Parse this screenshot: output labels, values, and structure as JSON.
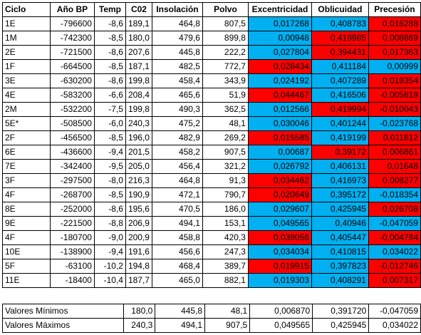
{
  "headers": [
    "Ciclo",
    "Año BP",
    "Temp",
    "C02",
    "Insolación",
    "Polvo",
    "Excentricidad",
    "Oblicuidad",
    "Precesión"
  ],
  "colors": {
    "blue": "#00b0f0",
    "red": "#ff0000"
  },
  "rows": [
    {
      "ciclo": "1E",
      "anio": "-796600",
      "temp": "-8,6",
      "co2": "189,1",
      "insol": "464,8",
      "polvo": "807,5",
      "exc": "0,017268",
      "obl": "0,408783",
      "prec": "0,016288",
      "exc_c": "blue",
      "obl_c": "blue",
      "prec_c": "red"
    },
    {
      "ciclo": "1M",
      "anio": "-742300",
      "temp": "-8,5",
      "co2": "180,0",
      "insol": "479,6",
      "polvo": "899,8",
      "exc": "0,00948",
      "obl": "0,418985",
      "prec": "0,008869",
      "exc_c": "blue",
      "obl_c": "red",
      "prec_c": "red"
    },
    {
      "ciclo": "2E",
      "anio": "-721500",
      "temp": "-8,6",
      "co2": "207,6",
      "insol": "445,8",
      "polvo": "222,2",
      "exc": "0,027804",
      "obl": "0,394431",
      "prec": "0,017363",
      "exc_c": "blue",
      "obl_c": "red",
      "prec_c": "red"
    },
    {
      "ciclo": "1F",
      "anio": "-664500",
      "temp": "-8,5",
      "co2": "187,1",
      "insol": "482,5",
      "polvo": "772,7",
      "exc": "0,028434",
      "obl": "0,411184",
      "prec": "0,00999",
      "exc_c": "red",
      "obl_c": "blue",
      "prec_c": "blue"
    },
    {
      "ciclo": "3E",
      "anio": "-630200",
      "temp": "-8,6",
      "co2": "199,8",
      "insol": "458,4",
      "polvo": "343,9",
      "exc": "0,024192",
      "obl": "0,407289",
      "prec": "0,018354",
      "exc_c": "blue",
      "obl_c": "blue",
      "prec_c": "red"
    },
    {
      "ciclo": "4E",
      "anio": "-583200",
      "temp": "-6,6",
      "co2": "208,4",
      "insol": "465,6",
      "polvo": "51,9",
      "exc": "0,044467",
      "obl": "0,416506",
      "prec": "-0,005819",
      "exc_c": "red",
      "obl_c": "blue",
      "prec_c": "red"
    },
    {
      "ciclo": "2M",
      "anio": "-532200",
      "temp": "-7,5",
      "co2": "199,8",
      "insol": "490,3",
      "polvo": "362,5",
      "exc": "0,012566",
      "obl": "0,419994",
      "prec": "-0,010043",
      "exc_c": "blue",
      "obl_c": "red",
      "prec_c": "red"
    },
    {
      "ciclo": "5E*",
      "anio": "-508500",
      "temp": "-6,0",
      "co2": "240,3",
      "insol": "475,2",
      "polvo": "48,1",
      "exc": "0,030046",
      "obl": "0,401244",
      "prec": "-0,023768",
      "exc_c": "blue",
      "obl_c": "blue",
      "prec_c": "blue"
    },
    {
      "ciclo": "2F",
      "anio": "-456500",
      "temp": "-8,5",
      "co2": "196,0",
      "insol": "482,9",
      "polvo": "269,2",
      "exc": "0,015585",
      "obl": "0,419199",
      "prec": "0,011812",
      "exc_c": "red",
      "obl_c": "blue",
      "prec_c": "red"
    },
    {
      "ciclo": "6E",
      "anio": "-436600",
      "temp": "-9,4",
      "co2": "201,5",
      "insol": "458,2",
      "polvo": "907,5",
      "exc": "0,00687",
      "obl": "0,39172",
      "prec": "0,006861",
      "exc_c": "blue",
      "obl_c": "red",
      "prec_c": "red"
    },
    {
      "ciclo": "7E",
      "anio": "-342400",
      "temp": "-9,5",
      "co2": "205,0",
      "insol": "456,4",
      "polvo": "321,2",
      "exc": "0,026792",
      "obl": "0,406131",
      "prec": "0,01648",
      "exc_c": "blue",
      "obl_c": "blue",
      "prec_c": "red"
    },
    {
      "ciclo": "3F",
      "anio": "-297500",
      "temp": "-8,0",
      "co2": "216,3",
      "insol": "464,8",
      "polvo": "91,3",
      "exc": "0,034462",
      "obl": "0,416973",
      "prec": "0,008277",
      "exc_c": "red",
      "obl_c": "blue",
      "prec_c": "red"
    },
    {
      "ciclo": "4F",
      "anio": "-268700",
      "temp": "-8,5",
      "co2": "190,9",
      "insol": "472,1",
      "polvo": "790,7",
      "exc": "0,020649",
      "obl": "0,395172",
      "prec": "-0,018354",
      "exc_c": "red",
      "obl_c": "blue",
      "prec_c": "blue"
    },
    {
      "ciclo": "8E",
      "anio": "-252000",
      "temp": "-8,6",
      "co2": "195,6",
      "insol": "470,5",
      "polvo": "186,0",
      "exc": "0,029607",
      "obl": "0,425945",
      "prec": "0,026708",
      "exc_c": "blue",
      "obl_c": "blue",
      "prec_c": "red"
    },
    {
      "ciclo": "9E",
      "anio": "-221500",
      "temp": "-8,8",
      "co2": "206,9",
      "insol": "494,1",
      "polvo": "153,1",
      "exc": "0,049565",
      "obl": "0,40946",
      "prec": "-0,047059",
      "exc_c": "blue",
      "obl_c": "blue",
      "prec_c": "blue"
    },
    {
      "ciclo": "4F",
      "anio": "-180700",
      "temp": "-9,0",
      "co2": "200,9",
      "insol": "458,8",
      "polvo": "420,3",
      "exc": "0,039056",
      "obl": "0,405447",
      "prec": "-0,004784",
      "exc_c": "red",
      "obl_c": "blue",
      "prec_c": "red"
    },
    {
      "ciclo": "10E",
      "anio": "-138900",
      "temp": "-9,4",
      "co2": "191,6",
      "insol": "456,6",
      "polvo": "247,3",
      "exc": "0,034034",
      "obl": "0,410815",
      "prec": "0,034022",
      "exc_c": "blue",
      "obl_c": "blue",
      "prec_c": "blue"
    },
    {
      "ciclo": "5F",
      "anio": "-63100",
      "temp": "-10,2",
      "co2": "194,8",
      "insol": "468,4",
      "polvo": "389,7",
      "exc": "0,019915",
      "obl": "0,397823",
      "prec": "-0,012746",
      "exc_c": "red",
      "obl_c": "blue",
      "prec_c": "red"
    },
    {
      "ciclo": "11E",
      "anio": "-18400",
      "temp": "-10,4",
      "co2": "187,7",
      "insol": "465,0",
      "polvo": "882,1",
      "exc": "0,019303",
      "obl": "0,408291",
      "prec": "0,007317",
      "exc_c": "blue",
      "obl_c": "blue",
      "prec_c": "red"
    }
  ],
  "summary": [
    {
      "label": "Valores Mínimos",
      "co2": "180,0",
      "insol": "445,8",
      "polvo": "48,1",
      "exc": "0,006870",
      "obl": "0,391720",
      "prec": "-0,047059"
    },
    {
      "label": "Valores Máximos",
      "co2": "240,3",
      "insol": "494,1",
      "polvo": "907,5",
      "exc": "0,049565",
      "obl": "0,425945",
      "prec": "0,034022"
    }
  ]
}
